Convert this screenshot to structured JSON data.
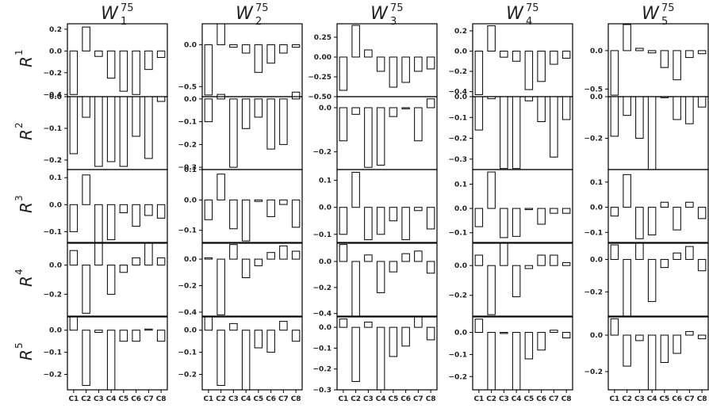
{
  "chart_data": {
    "type": "bar",
    "bar_fill": "#ffffff",
    "bar_edge": "#000000",
    "grid": false,
    "categories": [
      "C1",
      "C2",
      "C3",
      "C4",
      "C5",
      "C6",
      "C7",
      "C8"
    ],
    "columns": [
      {
        "base": "W",
        "sub": "1",
        "sup": "75"
      },
      {
        "base": "W",
        "sub": "2",
        "sup": "75"
      },
      {
        "base": "W",
        "sub": "3",
        "sup": "75"
      },
      {
        "base": "W",
        "sub": "4",
        "sup": "75"
      },
      {
        "base": "W",
        "sub": "5",
        "sup": "75"
      }
    ],
    "rows": [
      {
        "base": "R",
        "sup": "1"
      },
      {
        "base": "R",
        "sup": "2"
      },
      {
        "base": "R",
        "sup": "3"
      },
      {
        "base": "R",
        "sup": "4"
      },
      {
        "base": "R",
        "sup": "5"
      }
    ],
    "panels": [
      [
        {
          "ylim": [
            -0.42,
            0.25
          ],
          "yticks": [
            0.2,
            0.0,
            -0.2,
            -0.4
          ],
          "ytick_labels": [
            "0.2",
            "0.0",
            "−0.2",
            "−0.4"
          ],
          "values": [
            -0.4,
            0.22,
            -0.05,
            -0.25,
            -0.37,
            -0.4,
            -0.17,
            -0.06
          ]
        },
        {
          "ylim": [
            -0.62,
            0.25
          ],
          "yticks": [
            0.0,
            -0.5
          ],
          "ytick_labels": [
            "0.0",
            "−0.5"
          ],
          "values": [
            -0.6,
            0.25,
            -0.03,
            -0.1,
            -0.33,
            -0.22,
            -0.1,
            -0.03
          ]
        },
        {
          "ylim": [
            -0.5,
            0.42
          ],
          "yticks": [
            0.25,
            0.0,
            -0.25,
            -0.5
          ],
          "ytick_labels": [
            "0.25",
            "0.00",
            "−0.25",
            "−0.50"
          ],
          "values": [
            -0.42,
            0.4,
            0.09,
            -0.18,
            -0.38,
            -0.32,
            -0.18,
            -0.15
          ]
        },
        {
          "ylim": [
            -0.45,
            0.27
          ],
          "yticks": [
            0.2,
            0.0,
            -0.2,
            -0.4
          ],
          "ytick_labels": [
            "0.2",
            "0.0",
            "−0.2",
            "−0.4"
          ],
          "values": [
            -0.43,
            0.25,
            -0.06,
            -0.1,
            -0.38,
            -0.3,
            -0.13,
            -0.07
          ]
        },
        {
          "ylim": [
            -0.6,
            0.35
          ],
          "yticks": [
            0.0,
            -0.5
          ],
          "ytick_labels": [
            "0.0",
            "−0.5"
          ],
          "values": [
            -0.58,
            0.34,
            0.03,
            -0.03,
            -0.22,
            -0.38,
            -0.09,
            -0.04
          ]
        }
      ],
      [
        {
          "ylim": [
            -0.23,
            0.0
          ],
          "yticks": [
            0.0,
            -0.1,
            -0.2
          ],
          "ytick_labels": [
            "0.0",
            "−0.1",
            "−0.2"
          ],
          "values": [
            -0.18,
            -0.065,
            -0.22,
            -0.205,
            -0.22,
            -0.125,
            -0.195,
            -0.015
          ]
        },
        {
          "ylim": [
            -0.31,
            0.01
          ],
          "yticks": [
            0.0,
            -0.1,
            -0.2,
            -0.3
          ],
          "ytick_labels": [
            "0.0",
            "−0.1",
            "−0.2",
            "−0.3"
          ],
          "values": [
            -0.1,
            0.02,
            -0.3,
            -0.13,
            -0.08,
            -0.22,
            -0.2,
            0.03
          ]
        },
        {
          "ylim": [
            -0.28,
            0.05
          ],
          "yticks": [
            0.0,
            -0.2
          ],
          "ytick_labels": [
            "0.0",
            "−0.2"
          ],
          "values": [
            -0.15,
            -0.03,
            -0.27,
            -0.26,
            -0.04,
            -0.005,
            -0.15,
            0.04
          ]
        },
        {
          "ylim": [
            -0.35,
            0.0
          ],
          "yticks": [
            0.0,
            -0.1,
            -0.2,
            -0.3
          ],
          "ytick_labels": [
            "0.0",
            "−0.1",
            "−0.2",
            "−0.3"
          ],
          "values": [
            -0.16,
            -0.01,
            -0.345,
            -0.345,
            -0.02,
            -0.12,
            -0.29,
            -0.11
          ]
        },
        {
          "ylim": [
            -0.35,
            0.0
          ],
          "yticks": [
            0.0,
            -0.2
          ],
          "ytick_labels": [
            "0.0",
            "−0.2"
          ],
          "values": [
            -0.19,
            -0.09,
            -0.2,
            -0.35,
            -0.005,
            -0.11,
            -0.13,
            -0.05
          ]
        }
      ],
      [
        {
          "ylim": [
            -0.14,
            0.13
          ],
          "yticks": [
            0.1,
            0.0,
            -0.1
          ],
          "ytick_labels": [
            "0.1",
            "0.0",
            "−0.1"
          ],
          "values": [
            -0.1,
            0.11,
            -0.14,
            -0.13,
            -0.03,
            -0.08,
            -0.04,
            -0.05
          ]
        },
        {
          "ylim": [
            -0.14,
            0.1
          ],
          "yticks": [
            0.1,
            0.0,
            -0.1
          ],
          "ytick_labels": [
            "0.1",
            "0.0",
            "−0.1"
          ],
          "values": [
            -0.065,
            0.085,
            -0.095,
            -0.135,
            -0.005,
            -0.055,
            -0.015,
            -0.09
          ]
        },
        {
          "ylim": [
            -0.13,
            0.14
          ],
          "yticks": [
            0.1,
            0.0,
            -0.1
          ],
          "ytick_labels": [
            "0.1",
            "0.0",
            "−0.1"
          ],
          "values": [
            -0.1,
            0.13,
            -0.12,
            -0.1,
            -0.05,
            -0.12,
            -0.012,
            -0.08
          ]
        },
        {
          "ylim": [
            -0.14,
            0.16
          ],
          "yticks": [
            0.1,
            0.0,
            -0.1
          ],
          "ytick_labels": [
            "0.1",
            "0.0",
            "−0.1"
          ],
          "values": [
            -0.075,
            0.15,
            -0.12,
            -0.115,
            -0.005,
            -0.065,
            -0.02,
            -0.02
          ]
        },
        {
          "ylim": [
            -0.14,
            0.15
          ],
          "yticks": [
            0.1,
            0.0,
            -0.1
          ],
          "ytick_labels": [
            "0.1",
            "0.0",
            "−0.1"
          ],
          "values": [
            -0.035,
            0.13,
            -0.125,
            -0.11,
            0.02,
            -0.09,
            0.02,
            -0.045
          ]
        }
      ],
      [
        {
          "ylim": [
            -0.35,
            0.15
          ],
          "yticks": [
            0.0,
            -0.2
          ],
          "ytick_labels": [
            "0.0",
            "−0.2"
          ],
          "values": [
            0.1,
            -0.33,
            0.15,
            -0.2,
            -0.05,
            0.05,
            0.15,
            0.05
          ]
        },
        {
          "ylim": [
            -0.43,
            0.12
          ],
          "yticks": [
            0.0,
            -0.2,
            -0.4
          ],
          "ytick_labels": [
            "0.0",
            "−0.2",
            "−0.4"
          ],
          "values": [
            0.01,
            -0.42,
            0.11,
            -0.14,
            -0.05,
            0.05,
            0.1,
            0.06
          ]
        },
        {
          "ylim": [
            -0.42,
            0.14
          ],
          "yticks": [
            0.0,
            -0.2,
            -0.4
          ],
          "ytick_labels": [
            "0.0",
            "−0.2",
            "−0.4"
          ],
          "values": [
            0.13,
            -0.42,
            0.05,
            -0.24,
            -0.08,
            0.06,
            0.08,
            -0.09
          ]
        },
        {
          "ylim": [
            -0.34,
            0.15
          ],
          "yticks": [
            0.0,
            -0.2
          ],
          "ytick_labels": [
            "0.0",
            "−0.2"
          ],
          "values": [
            0.07,
            -0.33,
            0.15,
            -0.21,
            -0.02,
            0.07,
            0.07,
            0.02
          ]
        },
        {
          "ylim": [
            -0.35,
            0.1
          ],
          "yticks": [
            0.0,
            -0.2
          ],
          "ytick_labels": [
            "0.0",
            "−0.2"
          ],
          "values": [
            0.09,
            -0.35,
            0.1,
            -0.26,
            -0.05,
            0.04,
            0.08,
            -0.07
          ]
        }
      ],
      [
        {
          "ylim": [
            -0.27,
            0.06
          ],
          "yticks": [
            0.0,
            -0.1,
            -0.2
          ],
          "ytick_labels": [
            "0.0",
            "−0.1",
            "−0.2"
          ],
          "values": [
            0.06,
            -0.25,
            -0.01,
            -0.27,
            -0.05,
            -0.05,
            0.005,
            -0.05
          ]
        },
        {
          "ylim": [
            -0.27,
            0.06
          ],
          "yticks": [
            0.0,
            -0.1,
            -0.2
          ],
          "ytick_labels": [
            "0.0",
            "−0.1",
            "−0.2"
          ],
          "values": [
            0.06,
            -0.25,
            0.03,
            -0.27,
            -0.08,
            -0.1,
            0.04,
            -0.05
          ]
        },
        {
          "ylim": [
            -0.3,
            0.05
          ],
          "yticks": [
            0.0,
            -0.1,
            -0.2,
            -0.3
          ],
          "ytick_labels": [
            "0.0",
            "−0.1",
            "−0.2",
            "−0.3"
          ],
          "values": [
            0.04,
            -0.26,
            0.025,
            -0.3,
            -0.14,
            -0.09,
            0.05,
            -0.06
          ]
        },
        {
          "ylim": [
            -0.26,
            0.07
          ],
          "yticks": [
            0.0,
            -0.1,
            -0.2
          ],
          "ytick_labels": [
            "0.0",
            "−0.1",
            "−0.2"
          ],
          "values": [
            0.06,
            -0.26,
            -0.005,
            -0.26,
            -0.12,
            -0.08,
            0.01,
            -0.025
          ]
        },
        {
          "ylim": [
            -0.3,
            0.1
          ],
          "yticks": [
            0.0,
            -0.2
          ],
          "ytick_labels": [
            "0.0",
            "−0.2"
          ],
          "values": [
            0.09,
            -0.17,
            -0.03,
            -0.3,
            -0.15,
            -0.1,
            0.02,
            -0.02
          ]
        }
      ]
    ]
  }
}
